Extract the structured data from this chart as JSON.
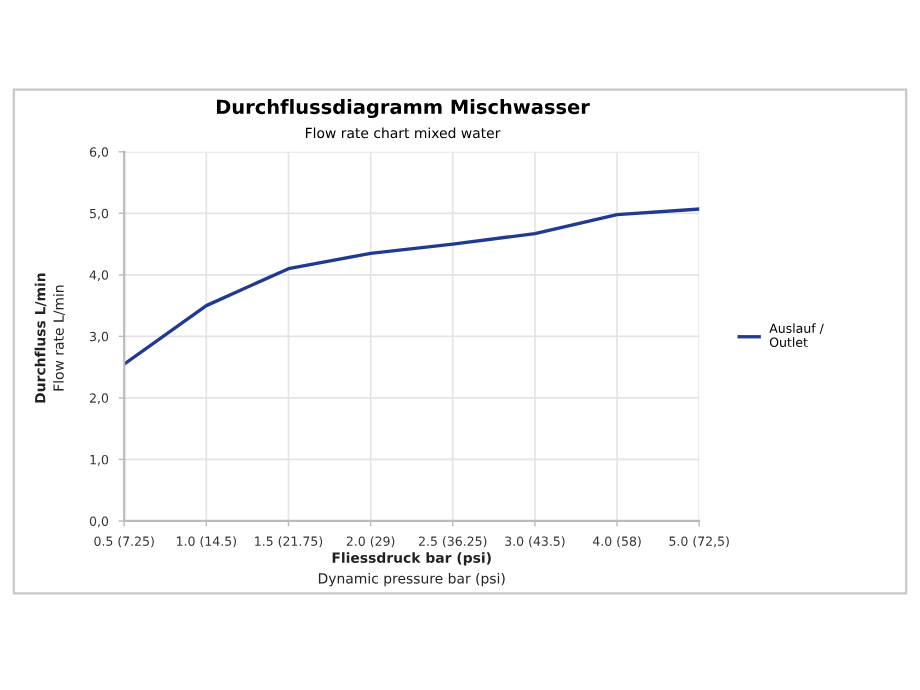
{
  "chart_data": {
    "type": "line",
    "title": "Durchflussdiagramm Mischwasser",
    "subtitle": "Flow rate chart mixed water",
    "xlabel": "Fliessdruck bar (psi)\nDynamic pressure bar (psi)",
    "ylabel": "Durchfluss L/min\nFlow rate L/min",
    "categories": [
      "0.5 (7.25)",
      "1.0 (14.5)",
      "1.5 (21.75)",
      "2.0 (29)",
      "2.5 (36.25)",
      "3.0 (43.5)",
      "4.0 (58)",
      "5.0 (72,5)"
    ],
    "series": [
      {
        "name": "Auslauf /\nOutlet",
        "color": "#1f3a93",
        "values": [
          2.55,
          3.5,
          4.1,
          4.35,
          4.5,
          4.67,
          4.98,
          5.07
        ]
      }
    ],
    "ylim": [
      0,
      6
    ],
    "yticks": [
      {
        "value": 0,
        "label": "0,0"
      },
      {
        "value": 1,
        "label": "1,0"
      },
      {
        "value": 2,
        "label": "2,0"
      },
      {
        "value": 3,
        "label": "3,0"
      },
      {
        "value": 4,
        "label": "4,0"
      },
      {
        "value": 5,
        "label": "5,0"
      },
      {
        "value": 6,
        "label": "6,0"
      }
    ],
    "grid": true,
    "legend": "right",
    "marker": "none",
    "line_style": "solid"
  }
}
